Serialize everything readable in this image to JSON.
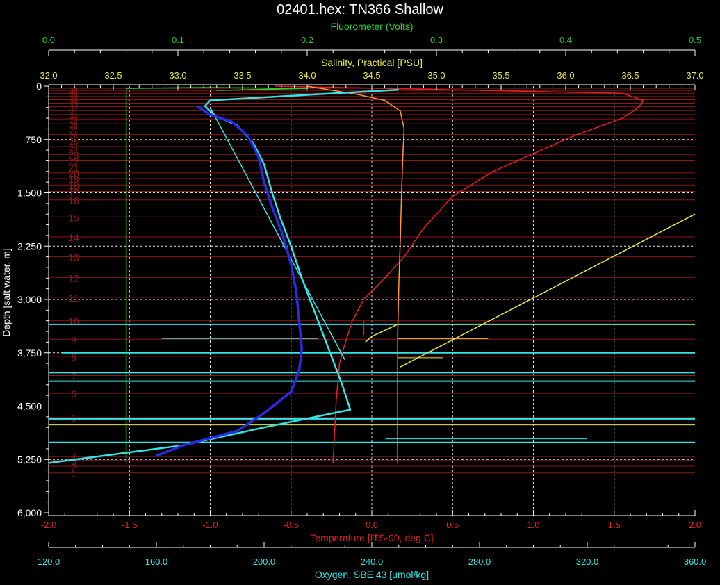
{
  "chart_data": {
    "type": "line",
    "title": "02401.hex: TN366 Shallow",
    "background": "#000000",
    "grid": true,
    "depth_axis": {
      "label": "Depth [salt water, m]",
      "range": [
        0,
        6000
      ],
      "ticks": [
        0,
        750,
        1500,
        2250,
        3000,
        3750,
        4500,
        5250,
        6000
      ],
      "tick_labels": [
        "0",
        "750",
        "1,500",
        "2,250",
        "3,000",
        "3,750",
        "4,500",
        "5,250",
        "6,000"
      ],
      "color": "#ffffff"
    },
    "axes": {
      "fluorometer": {
        "label": "Fluorometer (Volts)",
        "range": [
          0.0,
          0.5
        ],
        "ticks": [
          0.0,
          0.1,
          0.2,
          0.3,
          0.4,
          0.5
        ],
        "tick_labels": [
          "0.0",
          "0.1",
          "0.2",
          "0.3",
          "0.4",
          "0.5"
        ],
        "color": "#33cc33"
      },
      "salinity": {
        "label": "Salinity, Practical [PSU]",
        "range": [
          32.0,
          37.0
        ],
        "ticks": [
          32.0,
          32.5,
          33.0,
          33.5,
          34.0,
          34.5,
          35.0,
          35.5,
          36.0,
          36.5,
          37.0
        ],
        "tick_labels": [
          "32.0",
          "32.5",
          "33.0",
          "33.5",
          "34.0",
          "34.5",
          "35.0",
          "35.5",
          "36.0",
          "36.5",
          "37.0"
        ],
        "color": "#e6e64d"
      },
      "temperature": {
        "label": "Temperature [ITS-90, deg C]",
        "range": [
          -2.0,
          2.0
        ],
        "ticks": [
          -2.0,
          -1.5,
          -1.0,
          -0.5,
          0.0,
          0.5,
          1.0,
          1.5,
          2.0
        ],
        "tick_labels": [
          "-2.0",
          "-1.5",
          "-1.0",
          "-0.5",
          "0.0",
          "0.5",
          "1.0",
          "1.5",
          "2.0"
        ],
        "color": "#e62020"
      },
      "oxygen": {
        "label": "Oxygen, SBE 43 [umol/kg]",
        "range": [
          120.0,
          360.0
        ],
        "ticks": [
          120.0,
          160.0,
          200.0,
          240.0,
          280.0,
          320.0,
          360.0
        ],
        "tick_labels": [
          "120.0",
          "160.0",
          "200.0",
          "240.0",
          "280.0",
          "320.0",
          "360.0"
        ],
        "color": "#33e6e6"
      }
    },
    "bottle_markers": {
      "color": "#8c1a1a",
      "depths": [
        5440,
        5345,
        5265,
        5210,
        4660,
        4320,
        4070,
        3800,
        3560,
        3300,
        2970,
        2690,
        2400,
        2120,
        1840,
        1600,
        1480,
        1390,
        1300,
        1220,
        1140,
        1050,
        960,
        850,
        760,
        680,
        600,
        530,
        460,
        400,
        345,
        290,
        240,
        190,
        145,
        100,
        60,
        30
      ],
      "labels": [
        "1",
        "2",
        "3",
        "4",
        "5",
        "6",
        "7",
        "8",
        "9",
        "10",
        "11",
        "12",
        "13",
        "14",
        "15",
        "16",
        "17",
        "18",
        "19",
        "20",
        "21",
        "22",
        "23",
        "24",
        "25",
        "26",
        "27",
        "28",
        "29",
        "30",
        "31",
        "32",
        "33",
        "34",
        "35",
        "36",
        "37",
        "38"
      ]
    },
    "series": [
      {
        "name": "Temperature",
        "axis": "temperature",
        "color": "#e62020",
        "points": [
          [
            -0.6,
            0
          ],
          [
            1.55,
            100
          ],
          [
            1.68,
            200
          ],
          [
            1.65,
            300
          ],
          [
            1.55,
            450
          ],
          [
            1.25,
            700
          ],
          [
            1.05,
            900
          ],
          [
            0.75,
            1200
          ],
          [
            0.5,
            1550
          ],
          [
            0.32,
            2000
          ],
          [
            0.2,
            2400
          ],
          [
            0.08,
            2700
          ],
          [
            -0.05,
            3000
          ],
          [
            -0.12,
            3300
          ],
          [
            -0.17,
            3650
          ],
          [
            -0.2,
            3900
          ],
          [
            -0.22,
            4400
          ],
          [
            -0.24,
            5300
          ]
        ]
      },
      {
        "name": "Temperature",
        "axis": "temperature",
        "color": "#e62020",
        "points": [
          [
            -0.05,
            3300
          ],
          [
            -0.05,
            3500
          ]
        ]
      },
      {
        "name": "Salinity",
        "axis": "salinity",
        "color": "#ff9933",
        "points": [
          [
            34.0,
            0
          ],
          [
            34.4,
            120
          ],
          [
            34.6,
            200
          ],
          [
            34.72,
            350
          ],
          [
            34.75,
            600
          ],
          [
            34.74,
            1000
          ],
          [
            34.73,
            1500
          ],
          [
            34.72,
            2200
          ],
          [
            34.71,
            2700
          ],
          [
            34.7,
            3500
          ],
          [
            34.7,
            5300
          ]
        ]
      },
      {
        "name": "Salinity",
        "axis": "salinity",
        "color": "#e6e64d",
        "points": [
          [
            34.72,
            3950
          ],
          [
            37.0,
            1800
          ]
        ]
      },
      {
        "name": "Salinity",
        "axis": "salinity",
        "color": "#e6e64d",
        "points": [
          [
            34.7,
            3350
          ],
          [
            34.5,
            3520
          ],
          [
            34.45,
            3600
          ]
        ]
      },
      {
        "name": "Oxygen",
        "axis": "oxygen",
        "color": "#33e6e6",
        "points": [
          [
            250,
            50
          ],
          [
            180,
            200
          ],
          [
            178,
            280
          ],
          [
            182,
            420
          ],
          [
            190,
            550
          ],
          [
            196,
            800
          ],
          [
            200,
            1100
          ],
          [
            203,
            1500
          ],
          [
            206,
            1850
          ],
          [
            210,
            2250
          ],
          [
            214,
            2700
          ],
          [
            218,
            3100
          ],
          [
            222,
            3500
          ],
          [
            226,
            3900
          ],
          [
            229,
            4200
          ],
          [
            232,
            4550
          ],
          [
            200,
            4800
          ],
          [
            170,
            5050
          ],
          [
            140,
            5200
          ],
          [
            120,
            5300
          ]
        ]
      },
      {
        "name": "Oxygen",
        "axis": "oxygen",
        "color": "#33e6e6",
        "points": [
          [
            180,
            300
          ],
          [
            230,
            3850
          ]
        ]
      },
      {
        "name": "Oxygen",
        "axis": "oxygen",
        "color": "#2b2be6",
        "points": [
          [
            175,
            280
          ],
          [
            180,
            400
          ],
          [
            188,
            500
          ],
          [
            194,
            700
          ],
          [
            198,
            1000
          ],
          [
            200,
            1350
          ],
          [
            203,
            1700
          ],
          [
            207,
            2100
          ],
          [
            210,
            2500
          ],
          [
            212,
            2900
          ],
          [
            213,
            3300
          ],
          [
            214,
            3700
          ],
          [
            213,
            4000
          ],
          [
            210,
            4300
          ],
          [
            200,
            4600
          ],
          [
            190,
            4850
          ],
          [
            170,
            5050
          ],
          [
            160,
            5200
          ]
        ]
      },
      {
        "name": "Fluorometer",
        "axis": "fluorometer",
        "color": "#33cc33",
        "points": [
          [
            0.06,
            40
          ],
          [
            0.06,
            5300
          ]
        ]
      },
      {
        "name": "Fluorometer",
        "axis": "fluorometer",
        "color": "#33cc33",
        "points": [
          [
            0.06,
            30
          ],
          [
            0.12,
            20
          ],
          [
            0.2,
            30
          ],
          [
            0.13,
            60
          ]
        ]
      }
    ],
    "spikes": [
      {
        "depth": 3350,
        "axis": "oxygen",
        "from": 120,
        "to": 360,
        "color": "#33e6e6"
      },
      {
        "depth": 3350,
        "axis": "salinity",
        "from": 34.7,
        "to": 37.0,
        "color": "#e6e64d"
      },
      {
        "depth": 3550,
        "axis": "oxygen",
        "from": 162,
        "to": 220,
        "color": "#33e6e6"
      },
      {
        "depth": 3550,
        "axis": "salinity",
        "from": 34.7,
        "to": 35.4,
        "color": "#e6e64d"
      },
      {
        "depth": 3750,
        "axis": "oxygen",
        "from": 125,
        "to": 360,
        "color": "#33e6e6"
      },
      {
        "depth": 3820,
        "axis": "salinity",
        "from": 34.7,
        "to": 35.05,
        "color": "#e6e64d"
      },
      {
        "depth": 4050,
        "axis": "oxygen",
        "from": 175,
        "to": 220,
        "color": "#33e6e6"
      },
      {
        "depth": 4150,
        "axis": "oxygen",
        "from": 120,
        "to": 360,
        "color": "#33e6e6"
      },
      {
        "depth": 4500,
        "axis": "oxygen",
        "from": 220,
        "to": 255,
        "color": "#33e6e6"
      },
      {
        "depth": 4680,
        "axis": "oxygen",
        "from": 120,
        "to": 360,
        "color": "#33e6e6"
      },
      {
        "depth": 4760,
        "axis": "salinity",
        "from": 32.0,
        "to": 37.0,
        "color": "#e6e64d"
      },
      {
        "depth": 4920,
        "axis": "oxygen",
        "from": 120,
        "to": 138,
        "color": "#33e6e6"
      },
      {
        "depth": 4960,
        "axis": "oxygen",
        "from": 245,
        "to": 320,
        "color": "#33e6e6"
      },
      {
        "depth": 5010,
        "axis": "oxygen",
        "from": 120,
        "to": 360,
        "color": "#33e6e6"
      },
      {
        "depth": 4030,
        "axis": "oxygen",
        "from": 120,
        "to": 360,
        "color": "#33e6e6"
      }
    ]
  }
}
